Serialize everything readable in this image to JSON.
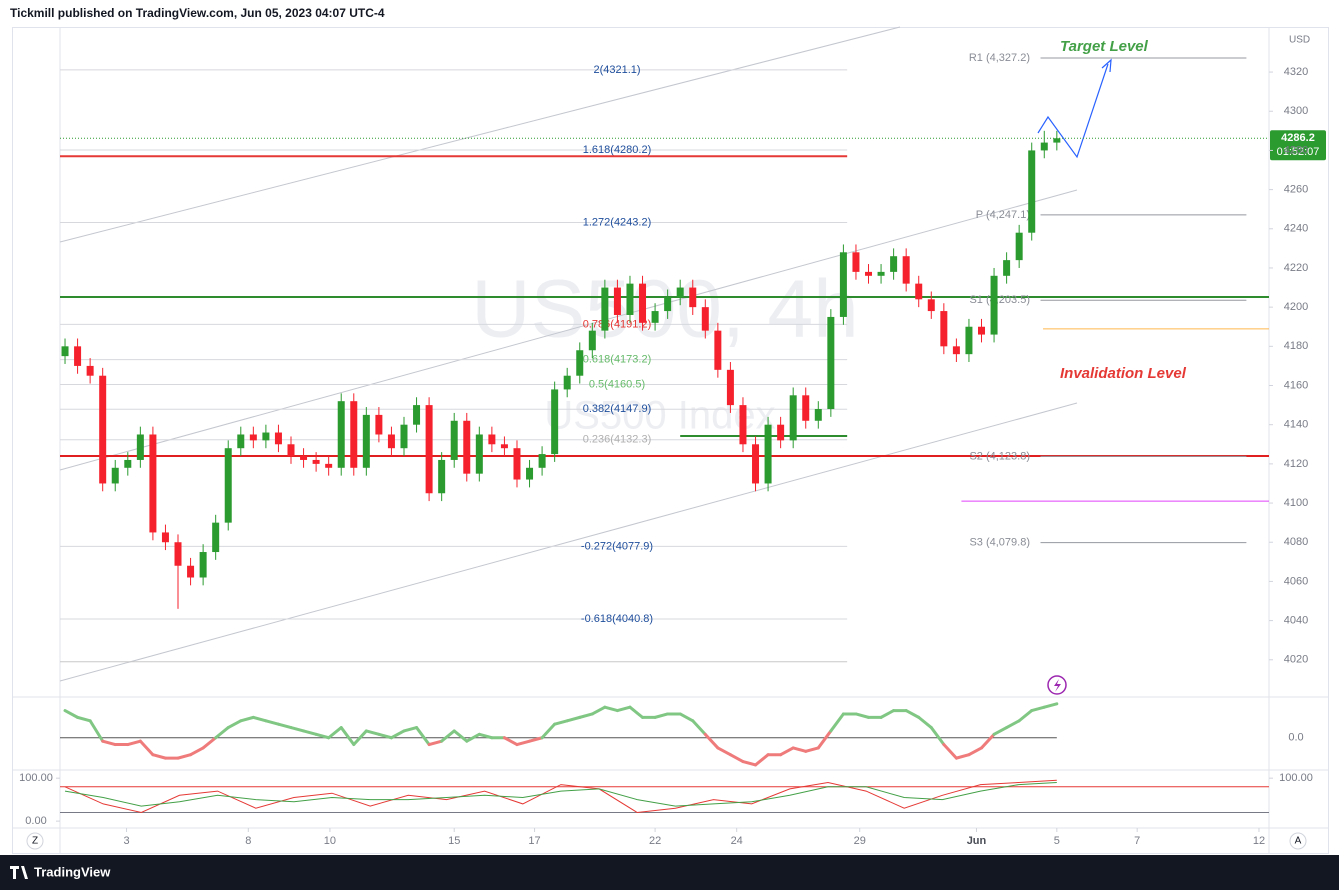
{
  "header": {
    "title": "Tickmill published on TradingView.com, Jun 05, 2023 04:07 UTC-4"
  },
  "footer": {
    "brand": "TradingView"
  },
  "ui": {
    "z_button": "Z",
    "a_button": "A"
  },
  "chart_data": {
    "type": "candlestick",
    "watermark": "US500, 4h",
    "watermark_subtitle": "US500 Index",
    "currency": "USD",
    "open": [
      4175,
      4180,
      4170,
      4165,
      4110,
      4118,
      4122,
      4135,
      4085,
      4080,
      4068,
      4062,
      4075,
      4090,
      4128,
      4135,
      4132,
      4136,
      4130,
      4124,
      4122,
      4120,
      4118,
      4152,
      4118,
      4145,
      4135,
      4128,
      4140,
      4150,
      4105,
      4122,
      4142,
      4115,
      4135,
      4130,
      4128,
      4112,
      4118,
      4125,
      4158,
      4165,
      4178,
      4188,
      4210,
      4196,
      4212,
      4192,
      4198,
      4205,
      4210,
      4200,
      4188,
      4168,
      4150,
      4130,
      4110,
      4140,
      4132,
      4155,
      4142,
      4148,
      4195,
      4228,
      4218,
      4216,
      4218,
      4226,
      4212,
      4204,
      4198,
      4180,
      4176,
      4190,
      4186,
      4216,
      4224,
      4238,
      4280,
      4284
    ],
    "high": [
      4184,
      4184,
      4174,
      4169,
      4122,
      4126,
      4139,
      4139,
      4089,
      4084,
      4072,
      4079,
      4094,
      4132,
      4139,
      4139,
      4140,
      4140,
      4134,
      4128,
      4126,
      4124,
      4156,
      4156,
      4149,
      4149,
      4139,
      4144,
      4154,
      4154,
      4126,
      4146,
      4146,
      4139,
      4139,
      4134,
      4132,
      4122,
      4129,
      4162,
      4169,
      4182,
      4192,
      4214,
      4214,
      4216,
      4216,
      4202,
      4209,
      4214,
      4214,
      4204,
      4192,
      4172,
      4154,
      4134,
      4144,
      4144,
      4159,
      4159,
      4152,
      4199,
      4232,
      4232,
      4222,
      4222,
      4230,
      4230,
      4216,
      4208,
      4202,
      4184,
      4194,
      4194,
      4220,
      4228,
      4242,
      4284,
      4290,
      4290
    ],
    "low": [
      4171,
      4166,
      4161,
      4106,
      4106,
      4114,
      4118,
      4081,
      4076,
      4046,
      4058,
      4058,
      4071,
      4086,
      4124,
      4128,
      4128,
      4126,
      4120,
      4118,
      4116,
      4114,
      4114,
      4114,
      4114,
      4131,
      4124,
      4124,
      4136,
      4101,
      4101,
      4118,
      4111,
      4111,
      4126,
      4124,
      4108,
      4108,
      4114,
      4121,
      4154,
      4161,
      4174,
      4184,
      4192,
      4192,
      4188,
      4188,
      4194,
      4201,
      4196,
      4184,
      4164,
      4146,
      4126,
      4106,
      4106,
      4128,
      4128,
      4138,
      4138,
      4144,
      4191,
      4214,
      4212,
      4212,
      4214,
      4208,
      4200,
      4194,
      4176,
      4172,
      4172,
      4182,
      4182,
      4212,
      4220,
      4234,
      4276,
      4280
    ],
    "close": [
      4180,
      4170,
      4165,
      4110,
      4118,
      4122,
      4135,
      4085,
      4080,
      4068,
      4062,
      4075,
      4090,
      4128,
      4135,
      4132,
      4136,
      4130,
      4124,
      4122,
      4120,
      4118,
      4152,
      4118,
      4145,
      4135,
      4128,
      4140,
      4150,
      4105,
      4122,
      4142,
      4115,
      4135,
      4130,
      4128,
      4112,
      4118,
      4125,
      4158,
      4165,
      4178,
      4188,
      4210,
      4196,
      4212,
      4192,
      4198,
      4205,
      4210,
      4200,
      4188,
      4168,
      4150,
      4130,
      4110,
      4140,
      4132,
      4155,
      4142,
      4148,
      4195,
      4228,
      4218,
      4216,
      4218,
      4226,
      4212,
      4204,
      4198,
      4180,
      4176,
      4190,
      4186,
      4216,
      4224,
      4238,
      4280,
      4284,
      4286.2
    ],
    "up_color": "#2b9a2f",
    "down_color": "#f5222d",
    "xlim": [
      -0.4,
      95.9
    ],
    "xticks": [
      {
        "value": 4.9,
        "label": "3"
      },
      {
        "value": 14.6,
        "label": "8"
      },
      {
        "value": 21.1,
        "label": "10"
      },
      {
        "value": 31,
        "label": "15"
      },
      {
        "value": 37.4,
        "label": "17"
      },
      {
        "value": 47,
        "label": "22"
      },
      {
        "value": 53.5,
        "label": "24"
      },
      {
        "value": 63.3,
        "label": "29"
      },
      {
        "value": 72.6,
        "label": "Jun"
      },
      {
        "value": 79,
        "label": "5"
      },
      {
        "value": 85.4,
        "label": "7"
      },
      {
        "value": 95.1,
        "label": "12"
      }
    ],
    "ylim": [
      4001,
      4343
    ],
    "yticks": [
      4020,
      4040,
      4060,
      4080,
      4100,
      4120,
      4140,
      4160,
      4180,
      4200,
      4220,
      4240,
      4260,
      4280,
      4300,
      4320
    ],
    "last_price": 4286.2,
    "countdown": "01:52:07",
    "last_color": "#2b9a2f",
    "fib_levels": [
      {
        "value": 4321.1,
        "label": "2(4321.1)",
        "color": "#1f4e9c"
      },
      {
        "value": 4280.2,
        "label": "1.618(4280.2)",
        "color": "#1f4e9c"
      },
      {
        "value": 4243.2,
        "label": "1.272(4243.2)",
        "color": "#1f4e9c"
      },
      {
        "value": 4191.2,
        "label": "0.786(4191.2)",
        "color": "#e53935"
      },
      {
        "value": 4173.2,
        "label": "0.618(4173.2)",
        "color": "#66bb6a"
      },
      {
        "value": 4160.5,
        "label": "0.5(4160.5)",
        "color": "#66bb6a"
      },
      {
        "value": 4147.9,
        "label": "0.382(4147.9)",
        "color": "#1f4e9c"
      },
      {
        "value": 4132.3,
        "label": "0.236(4132.3)",
        "color": "#b0b0b0"
      },
      {
        "value": 4077.9,
        "label": "-0.272(4077.9)",
        "color": "#1f4e9c"
      },
      {
        "value": 4040.8,
        "label": "-0.618(4040.8)",
        "color": "#1f4e9c"
      }
    ],
    "pivots": [
      {
        "value": 4327.2,
        "label": "R1 (4,327.2)"
      },
      {
        "value": 4247.1,
        "label": "P (4,247.1)"
      },
      {
        "value": 4203.5,
        "label": "S1 (4,203.5)"
      },
      {
        "value": 4123.8,
        "label": "S2 (4,123.8)"
      },
      {
        "value": 4079.8,
        "label": "S3 (4,079.8)"
      }
    ],
    "hlines": [
      {
        "value": 4277,
        "color": "#e53935",
        "from": -0.4,
        "to": 62.3,
        "width": 2
      },
      {
        "value": 4205.2,
        "color": "#2e8b2e",
        "from": -0.4,
        "to": 95.9,
        "width": 2
      },
      {
        "value": 4124,
        "color": "#e02020",
        "from": -0.4,
        "to": 95.9,
        "width": 2
      },
      {
        "value": 4134.2,
        "color": "#2e8b2e",
        "from": 49,
        "to": 62.3,
        "width": 2
      },
      {
        "value": 4188.9,
        "color": "#ffb74d",
        "from": 77.9,
        "to": 95.9,
        "width": 1
      },
      {
        "value": 4101,
        "color": "#e040fb",
        "from": 71.4,
        "to": 95.9,
        "width": 1
      },
      {
        "value": 4019,
        "color": "#c8c8c8",
        "from": -0.4,
        "to": 62.3,
        "width": 1
      }
    ],
    "annotations": [
      {
        "text": "Target Level",
        "color": "#43a047"
      },
      {
        "text": "Invalidation Level",
        "color": "#e53935"
      }
    ],
    "oscillator": {
      "ylim": [
        -0.95,
        1.2
      ],
      "yticks": [
        {
          "value": 0,
          "label": "0.0"
        }
      ],
      "up_color": "#81c784",
      "down_color": "#ef7b7b",
      "values": [
        0.8,
        0.6,
        0.5,
        -0.1,
        -0.2,
        -0.2,
        -0.1,
        -0.5,
        -0.6,
        -0.6,
        -0.5,
        -0.3,
        0,
        0.3,
        0.5,
        0.6,
        0.5,
        0.4,
        0.3,
        0.2,
        0.1,
        0,
        0.3,
        -0.2,
        0.2,
        0.1,
        0,
        0.2,
        0.3,
        -0.2,
        -0.1,
        0.2,
        -0.1,
        0.1,
        0,
        0,
        -0.2,
        -0.1,
        0,
        0.4,
        0.5,
        0.6,
        0.7,
        0.9,
        0.8,
        0.9,
        0.6,
        0.6,
        0.7,
        0.7,
        0.5,
        0.1,
        -0.3,
        -0.5,
        -0.7,
        -0.8,
        -0.5,
        -0.5,
        -0.3,
        -0.4,
        -0.3,
        0.2,
        0.7,
        0.7,
        0.6,
        0.6,
        0.8,
        0.8,
        0.6,
        0.3,
        -0.2,
        -0.6,
        -0.5,
        -0.3,
        0.1,
        0.3,
        0.5,
        0.8,
        0.9,
        1.0
      ]
    },
    "stochastic": {
      "ylim": [
        -16,
        119
      ],
      "yticks": [
        {
          "value": 100,
          "label": "100.00"
        },
        {
          "value": 0,
          "label": "0.00"
        }
      ],
      "right_ticks": [
        {
          "value": 100,
          "label": "100.00"
        }
      ],
      "levels": [
        80,
        20
      ],
      "series": [
        {
          "color": "#e53935",
          "values": [
            80,
            40,
            20,
            60,
            70,
            30,
            55,
            65,
            35,
            60,
            50,
            70,
            40,
            85,
            75,
            20,
            30,
            50,
            40,
            75,
            90,
            70,
            30,
            60,
            85,
            90,
            95
          ]
        },
        {
          "color": "#43a047",
          "values": [
            70,
            55,
            35,
            45,
            60,
            50,
            45,
            55,
            50,
            50,
            55,
            60,
            55,
            70,
            75,
            50,
            35,
            40,
            45,
            60,
            80,
            80,
            55,
            50,
            70,
            85,
            90
          ]
        }
      ]
    }
  }
}
